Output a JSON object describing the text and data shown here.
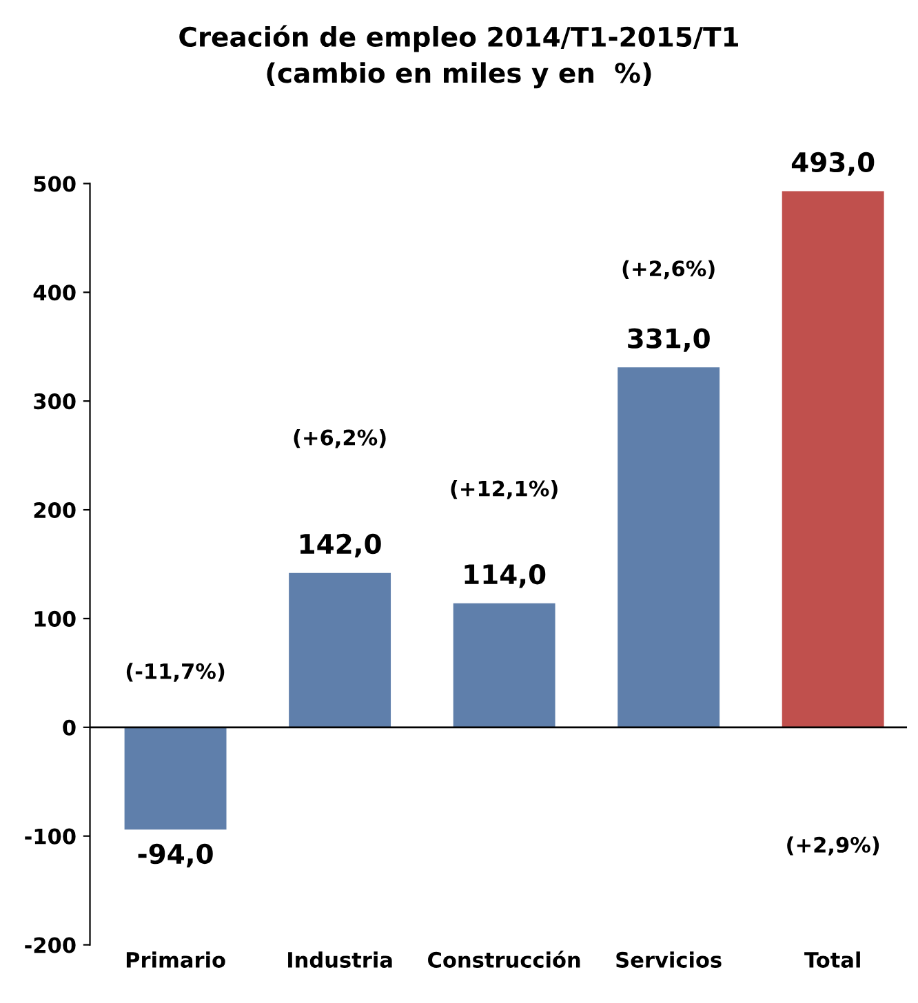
{
  "chart_data": {
    "type": "bar",
    "title": "Creación de empleo 2014/T1-2015/T1\n(cambio en miles y en  %)",
    "categories": [
      "Primario",
      "Industria",
      "Construcción",
      "Servicios",
      "Total"
    ],
    "values": [
      -94.0,
      142.0,
      114.0,
      331.0,
      493.0
    ],
    "colors": [
      "#5f7fab",
      "#5f7fab",
      "#5f7fab",
      "#5f7fab",
      "#c0504d"
    ],
    "value_labels": [
      "-94,0",
      "142,0",
      "114,0",
      "331,0",
      "493,0"
    ],
    "ylim": [
      -200,
      500
    ],
    "yticks": [
      -200,
      -100,
      0,
      100,
      200,
      300,
      400,
      500
    ],
    "annotations": [
      "(-11,7%)",
      "(+6,2%)",
      "(+12,1%)",
      "(+2,6%)",
      "(+2,9%)"
    ]
  }
}
